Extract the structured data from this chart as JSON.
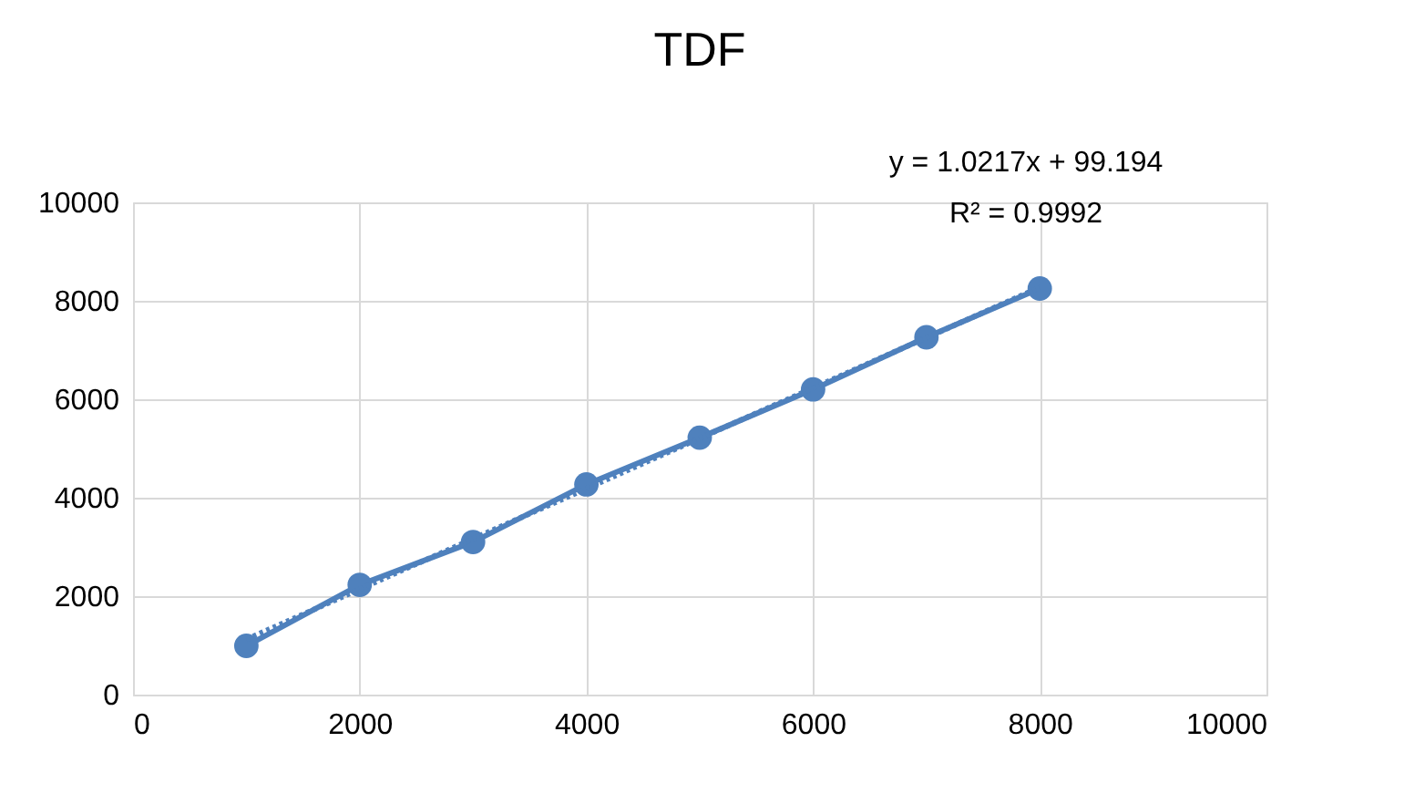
{
  "chart_data": {
    "type": "line",
    "title": "TDF",
    "grid": true,
    "xlim": [
      0,
      10000
    ],
    "xticks": [
      0,
      2000,
      4000,
      6000,
      8000,
      10000
    ],
    "ylim": [
      0,
      10000
    ],
    "yticks": [
      0,
      2000,
      4000,
      6000,
      8000,
      10000
    ],
    "series": [
      {
        "color": "#4f81bd",
        "x": [
          1000,
          2000,
          3000,
          4000,
          5000,
          6000,
          7000,
          8000
        ],
        "values": [
          990,
          2230,
          3100,
          4270,
          5220,
          6200,
          7260,
          8250
        ],
        "marker": "circle",
        "line_style": "solid"
      },
      {
        "type": "line",
        "color": "#4f81bd",
        "x": [
          1000,
          8000
        ],
        "values": [
          1121,
          8273
        ],
        "line_style": "dotted"
      }
    ],
    "annotations": [
      "y = 1.0217x + 99.194",
      "R² = 0.9992"
    ]
  }
}
